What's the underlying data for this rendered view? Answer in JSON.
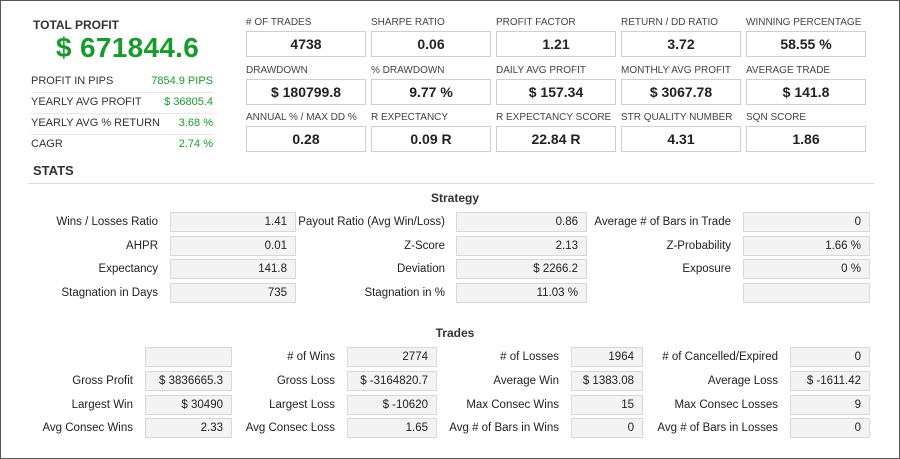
{
  "summary": {
    "total_profit_label": "TOTAL PROFIT",
    "total_profit_value": "$ 671844.6",
    "rows": [
      {
        "label": "PROFIT IN PIPS",
        "value": "7854.9 PIPS"
      },
      {
        "label": "YEARLY AVG PROFIT",
        "value": "$ 36805.4"
      },
      {
        "label": "YEARLY AVG % RETURN",
        "value": "3.68 %"
      },
      {
        "label": "CAGR",
        "value": "2.74 %"
      }
    ]
  },
  "metrics": [
    {
      "label": "# OF TRADES",
      "value": "4738"
    },
    {
      "label": "SHARPE RATIO",
      "value": "0.06"
    },
    {
      "label": "PROFIT FACTOR",
      "value": "1.21"
    },
    {
      "label": "RETURN / DD RATIO",
      "value": "3.72"
    },
    {
      "label": "WINNING PERCENTAGE",
      "value": "58.55 %"
    },
    {
      "label": "DRAWDOWN",
      "value": "$ 180799.8"
    },
    {
      "label": "% DRAWDOWN",
      "value": "9.77 %"
    },
    {
      "label": "DAILY AVG PROFIT",
      "value": "$ 157.34"
    },
    {
      "label": "MONTHLY AVG PROFIT",
      "value": "$ 3067.78"
    },
    {
      "label": "AVERAGE TRADE",
      "value": "$ 141.8"
    },
    {
      "label": "ANNUAL % / MAX DD %",
      "value": "0.28"
    },
    {
      "label": "R EXPECTANCY",
      "value": "0.09 R"
    },
    {
      "label": "R EXPECTANCY SCORE",
      "value": "22.84 R"
    },
    {
      "label": "STR QUALITY NUMBER",
      "value": "4.31"
    },
    {
      "label": "SQN SCORE",
      "value": "1.86"
    }
  ],
  "stats_title": "STATS",
  "strategy": {
    "title": "Strategy",
    "rows": [
      [
        {
          "label": "Wins / Losses Ratio",
          "value": "1.41"
        },
        {
          "label": "Payout Ratio (Avg Win/Loss)",
          "value": "0.86"
        },
        {
          "label": "Average # of Bars in Trade",
          "value": "0"
        }
      ],
      [
        {
          "label": "AHPR",
          "value": "0.01"
        },
        {
          "label": "Z-Score",
          "value": "2.13"
        },
        {
          "label": "Z-Probability",
          "value": "1.66 %"
        }
      ],
      [
        {
          "label": "Expectancy",
          "value": "141.8"
        },
        {
          "label": "Deviation",
          "value": "$ 2266.2"
        },
        {
          "label": "Exposure",
          "value": "0 %"
        }
      ],
      [
        {
          "label": "Stagnation in Days",
          "value": "735"
        },
        {
          "label": "Stagnation in %",
          "value": "11.03 %"
        },
        {
          "label": "",
          "value": ""
        }
      ]
    ]
  },
  "trades": {
    "title": "Trades",
    "rows": [
      [
        {
          "label": "",
          "value": ""
        },
        {
          "label": "# of Wins",
          "value": "2774"
        },
        {
          "label": "# of Losses",
          "value": "1964"
        },
        {
          "label": "# of Cancelled/Expired",
          "value": "0"
        }
      ],
      [
        {
          "label": "Gross Profit",
          "value": "$ 3836665.3"
        },
        {
          "label": "Gross Loss",
          "value": "$ -3164820.7"
        },
        {
          "label": "Average Win",
          "value": "$ 1383.08"
        },
        {
          "label": "Average Loss",
          "value": "$ -1611.42"
        }
      ],
      [
        {
          "label": "Largest Win",
          "value": "$ 30490"
        },
        {
          "label": "Largest Loss",
          "value": "$ -10620"
        },
        {
          "label": "Max Consec Wins",
          "value": "15"
        },
        {
          "label": "Max Consec Losses",
          "value": "9"
        }
      ],
      [
        {
          "label": "Avg Consec Wins",
          "value": "2.33"
        },
        {
          "label": "Avg Consec Loss",
          "value": "1.65"
        },
        {
          "label": "Avg # of Bars in Wins",
          "value": "0"
        },
        {
          "label": "Avg # of Bars in Losses",
          "value": "0"
        }
      ]
    ]
  }
}
